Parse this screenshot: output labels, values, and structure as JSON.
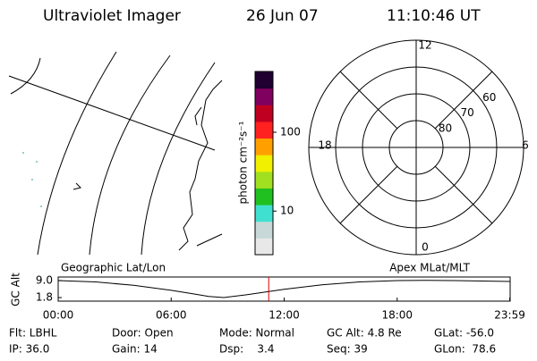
{
  "header": {
    "instrument": "Ultraviolet Imager",
    "date": "26 Jun 07",
    "time": "11:10:46 UT"
  },
  "map": {
    "label": "Geographic Lat/Lon"
  },
  "colorbar": {
    "axis_label": "photon cm⁻²s⁻¹",
    "log": true,
    "lim": [
      2.8,
      590
    ],
    "ticks": [
      10,
      100
    ],
    "colors": [
      "#e8e8e8",
      "#c8d8d8",
      "#40e0d0",
      "#20c020",
      "#a0e020",
      "#f0f000",
      "#ffa000",
      "#ff2020",
      "#c00020",
      "#800060",
      "#200030"
    ]
  },
  "polar": {
    "label": "Apex MLat/MLT",
    "lat_lim": [
      50,
      90
    ],
    "lat_ticks": [
      60,
      70,
      80
    ],
    "lat_rings": [
      60,
      70,
      80
    ],
    "mlt_labels": [
      {
        "value": 12,
        "label": "12"
      },
      {
        "value": 18,
        "label": "18"
      },
      {
        "value": 6,
        "label": "6"
      },
      {
        "value": 0,
        "label": "0"
      }
    ]
  },
  "altitude": {
    "axis_label": "GC Alt",
    "xlim": [
      0,
      24
    ],
    "ylim": [
      0.3,
      10.5
    ],
    "yticks": [
      {
        "value": 9.0,
        "label": "9.0"
      },
      {
        "value": 1.8,
        "label": "1.8"
      }
    ],
    "xticks": [
      {
        "value": 0,
        "label": "00:00"
      },
      {
        "value": 6,
        "label": "06:00"
      },
      {
        "value": 12,
        "label": "12:00"
      },
      {
        "value": 18,
        "label": "18:00"
      },
      {
        "value": 23.98,
        "label": "23:59"
      }
    ],
    "hours": [
      0,
      2,
      4,
      6,
      7,
      8,
      8.8,
      10,
      12,
      14,
      16,
      18,
      19.5,
      21,
      23.98
    ],
    "alt": [
      9.0,
      8.4,
      7.0,
      4.9,
      3.6,
      2.3,
      1.8,
      3.0,
      5.3,
      7.2,
      8.4,
      9.0,
      9.1,
      9.0,
      8.6
    ],
    "marker_hours": 11.18
  },
  "footer": [
    [
      "Flt: LBHL",
      "Door: Open",
      "Mode: Normal",
      "GC Alt: 4.8 Re",
      "GLat: -56.0"
    ],
    [
      "IP: 36.0",
      "Gain: 14",
      "Dsp:    3.4",
      "Seq: 39",
      "GLon:  78.6"
    ]
  ]
}
